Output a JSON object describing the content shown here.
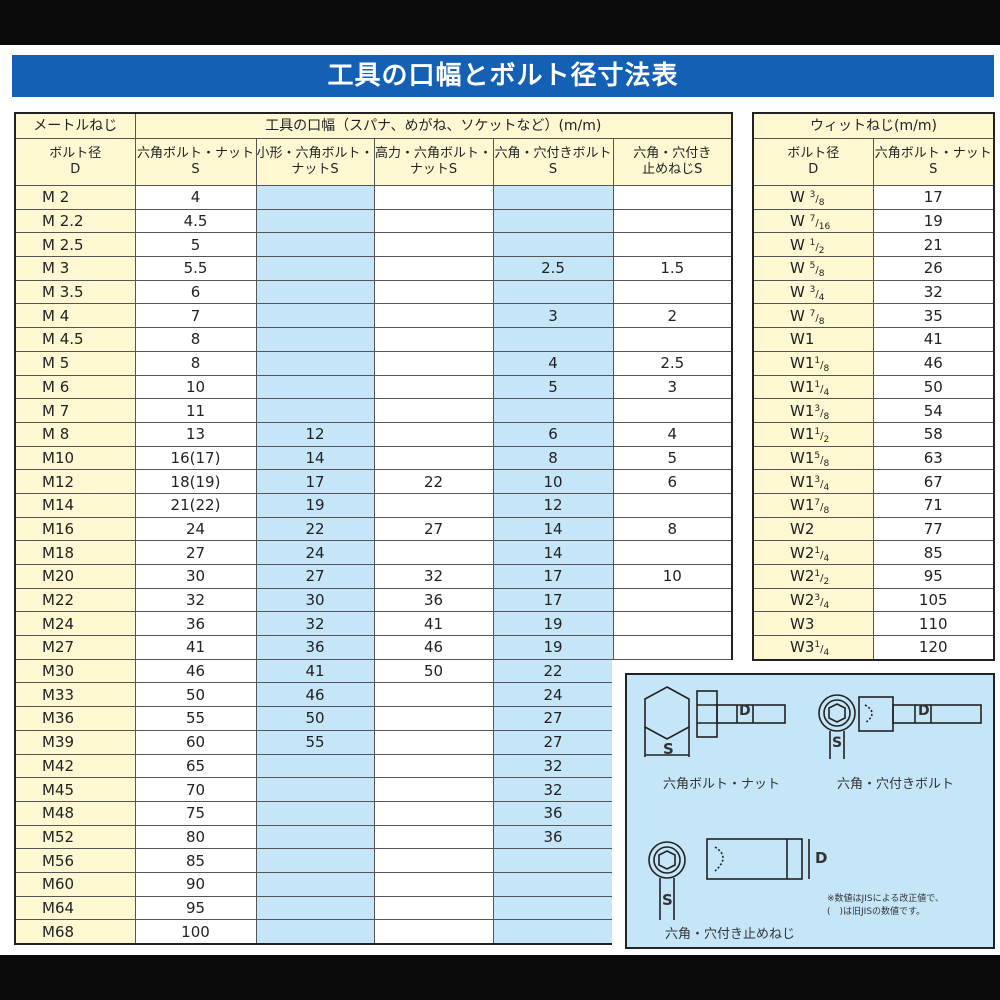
{
  "title": "工具の口幅とボルト径寸法表",
  "metric": {
    "header_group": "メートルねじ",
    "tool_header": "工具の口幅（スパナ、めがね、ソケットなど）(m/m)",
    "col_headers": [
      "ボルト径\nD",
      "六角ボルト・ナット\nS",
      "小形・六角ボルト・\nナットS",
      "高力・六角ボルト・\nナットS",
      "六角・穴付きボルト\nS",
      "六角・穴付き\n止めねじS"
    ],
    "rows": [
      [
        "M 2",
        "4",
        "",
        "",
        "",
        ""
      ],
      [
        "M 2.2",
        "4.5",
        "",
        "",
        "",
        ""
      ],
      [
        "M 2.5",
        "5",
        "",
        "",
        "",
        ""
      ],
      [
        "M 3",
        "5.5",
        "",
        "",
        "2.5",
        "1.5"
      ],
      [
        "M 3.5",
        "6",
        "",
        "",
        "",
        ""
      ],
      [
        "M 4",
        "7",
        "",
        "",
        "3",
        "2"
      ],
      [
        "M 4.5",
        "8",
        "",
        "",
        "",
        ""
      ],
      [
        "M 5",
        "8",
        "",
        "",
        "4",
        "2.5"
      ],
      [
        "M 6",
        "10",
        "",
        "",
        "5",
        "3"
      ],
      [
        "M 7",
        "11",
        "",
        "",
        "",
        ""
      ],
      [
        "M 8",
        "13",
        "12",
        "",
        "6",
        "4"
      ],
      [
        "M10",
        "16(17)",
        "14",
        "",
        "8",
        "5"
      ],
      [
        "M12",
        "18(19)",
        "17",
        "22",
        "10",
        "6"
      ],
      [
        "M14",
        "21(22)",
        "19",
        "",
        "12",
        ""
      ],
      [
        "M16",
        "24",
        "22",
        "27",
        "14",
        "8"
      ],
      [
        "M18",
        "27",
        "24",
        "",
        "14",
        ""
      ],
      [
        "M20",
        "30",
        "27",
        "32",
        "17",
        "10"
      ],
      [
        "M22",
        "32",
        "30",
        "36",
        "17",
        ""
      ],
      [
        "M24",
        "36",
        "32",
        "41",
        "19",
        ""
      ],
      [
        "M27",
        "41",
        "36",
        "46",
        "19",
        ""
      ],
      [
        "M30",
        "46",
        "41",
        "50",
        "22",
        ""
      ],
      [
        "M33",
        "50",
        "46",
        "",
        "24",
        ""
      ],
      [
        "M36",
        "55",
        "50",
        "",
        "27",
        ""
      ],
      [
        "M39",
        "60",
        "55",
        "",
        "27",
        ""
      ],
      [
        "M42",
        "65",
        "",
        "",
        "32",
        ""
      ],
      [
        "M45",
        "70",
        "",
        "",
        "32",
        ""
      ],
      [
        "M48",
        "75",
        "",
        "",
        "36",
        ""
      ],
      [
        "M52",
        "80",
        "",
        "",
        "36",
        ""
      ],
      [
        "M56",
        "85",
        "",
        "",
        "",
        ""
      ],
      [
        "M60",
        "90",
        "",
        "",
        "",
        ""
      ],
      [
        "M64",
        "95",
        "",
        "",
        "",
        ""
      ],
      [
        "M68",
        "100",
        "",
        "",
        "",
        ""
      ]
    ]
  },
  "whit": {
    "header": "ウィットねじ(m/m)",
    "col_headers": [
      "ボルト径\nD",
      "六角ボルト・ナット\nS"
    ],
    "rows": [
      [
        [
          "W ",
          "3",
          "8"
        ],
        "17"
      ],
      [
        [
          "W ",
          "7",
          "16"
        ],
        "19"
      ],
      [
        [
          "W ",
          "1",
          "2"
        ],
        "21"
      ],
      [
        [
          "W ",
          "5",
          "8"
        ],
        "26"
      ],
      [
        [
          "W ",
          "3",
          "4"
        ],
        "32"
      ],
      [
        [
          "W ",
          "7",
          "8"
        ],
        "35"
      ],
      [
        [
          "W1",
          "",
          ""
        ],
        "41"
      ],
      [
        [
          "W1",
          "1",
          "8"
        ],
        "46"
      ],
      [
        [
          "W1",
          "1",
          "4"
        ],
        "50"
      ],
      [
        [
          "W1",
          "3",
          "8"
        ],
        "54"
      ],
      [
        [
          "W1",
          "1",
          "2"
        ],
        "58"
      ],
      [
        [
          "W1",
          "5",
          "8"
        ],
        "63"
      ],
      [
        [
          "W1",
          "3",
          "4"
        ],
        "67"
      ],
      [
        [
          "W1",
          "7",
          "8"
        ],
        "71"
      ],
      [
        [
          "W2",
          "",
          ""
        ],
        "77"
      ],
      [
        [
          "W2",
          "1",
          "4"
        ],
        "85"
      ],
      [
        [
          "W2",
          "1",
          "2"
        ],
        "95"
      ],
      [
        [
          "W2",
          "3",
          "4"
        ],
        "105"
      ],
      [
        [
          "W3",
          "",
          ""
        ],
        "110"
      ],
      [
        [
          "W3",
          "1",
          "4"
        ],
        "120"
      ]
    ]
  },
  "diagram": {
    "captions": [
      "六角ボルト・ナット",
      "六角・穴付きボルト",
      "六角・穴付き止めねじ"
    ],
    "labels": {
      "s": "S",
      "d": "D"
    },
    "note": [
      "※数値はJISによる改正値で、",
      "(　)は旧JISの数値です。"
    ]
  },
  "colors": {
    "title_bg": "#1360b4",
    "header_bg": "#fdf8d2",
    "highlight_col": "#c5e6f8"
  }
}
